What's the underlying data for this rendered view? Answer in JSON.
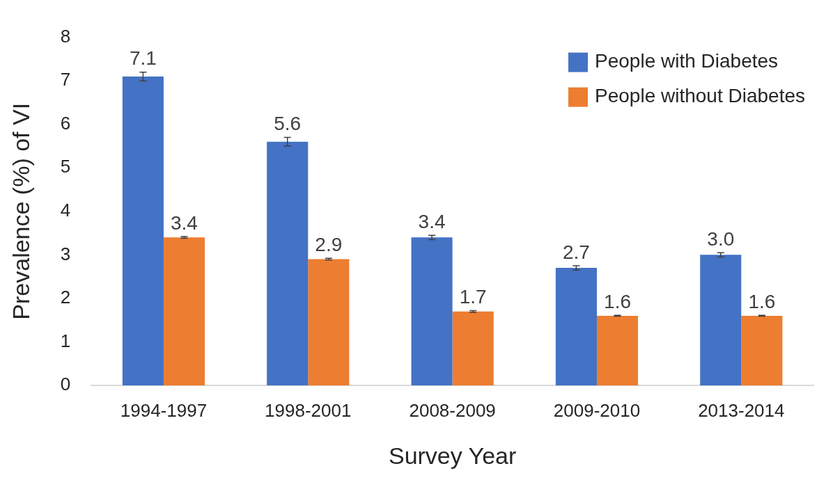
{
  "chart_data": {
    "type": "bar",
    "xlabel": "Survey Year",
    "ylabel": "Prevalence (%) of VI",
    "categories": [
      "1994-1997",
      "1998-2001",
      "2008-2009",
      "2009-2010",
      "2013-2014"
    ],
    "series": [
      {
        "name": "People with Diabetes",
        "color": "#4472c4",
        "values": [
          7.1,
          5.6,
          3.4,
          2.7,
          3.0
        ],
        "value_labels": [
          "7.1",
          "5.6",
          "3.4",
          "2.7",
          "3.0"
        ],
        "errors": [
          0.1,
          0.1,
          0.05,
          0.05,
          0.05
        ]
      },
      {
        "name": "People without Diabetes",
        "color": "#ed7d31",
        "values": [
          3.4,
          2.9,
          1.7,
          1.6,
          1.6
        ],
        "value_labels": [
          "3.4",
          "2.9",
          "1.7",
          "1.6",
          "1.6"
        ],
        "errors": [
          0.02,
          0.02,
          0.02,
          0.01,
          0.01
        ]
      }
    ],
    "ylim": [
      0,
      8
    ],
    "yticks": [
      0,
      1,
      2,
      3,
      4,
      5,
      6,
      7,
      8
    ],
    "grid": false,
    "legend": "top right"
  }
}
